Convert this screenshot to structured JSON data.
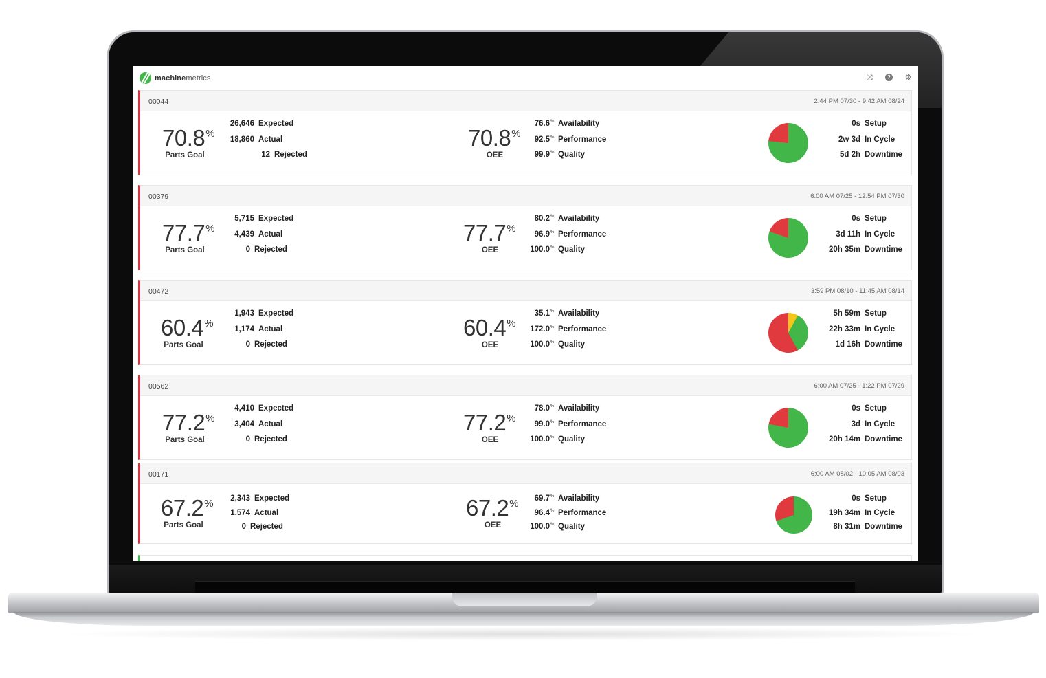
{
  "app": {
    "brand_bold": "machine",
    "brand_light": "metrics"
  },
  "colors": {
    "alert": "#d9313f",
    "ok": "#43b649",
    "setup": "#f5c518",
    "cycle": "#43b649",
    "down": "#e03a3e"
  },
  "icons": [
    "shuffle-icon",
    "help-icon",
    "gear-icon"
  ],
  "machines": [
    {
      "id": "00044",
      "range": "2:44 PM 07/30 - 9:42 AM 08/24",
      "goal_pct": "70.8",
      "goal_label": "Parts Goal",
      "expected": "26,646",
      "actual": "18,860",
      "rejected": "12",
      "oee_pct": "70.8",
      "oee_label": "OEE",
      "availability": "76.6",
      "performance": "92.5",
      "quality": "99.9",
      "setup": "0s",
      "in_cycle": "2w 3d",
      "downtime": "5d 2h",
      "pie": {
        "setup": 0,
        "in_cycle": 76.6,
        "downtime": 23.4
      }
    },
    {
      "id": "00379",
      "range": "6:00 AM 07/25 - 12:54 PM 07/30",
      "goal_pct": "77.7",
      "goal_label": "Parts Goal",
      "expected": "5,715",
      "actual": "4,439",
      "rejected": "0",
      "oee_pct": "77.7",
      "oee_label": "OEE",
      "availability": "80.2",
      "performance": "96.9",
      "quality": "100.0",
      "setup": "0s",
      "in_cycle": "3d 11h",
      "downtime": "20h 35m",
      "pie": {
        "setup": 0,
        "in_cycle": 80.2,
        "downtime": 19.8
      }
    },
    {
      "id": "00472",
      "range": "3:59 PM 08/10 - 11:45 AM 08/14",
      "goal_pct": "60.4",
      "goal_label": "Parts Goal",
      "expected": "1,943",
      "actual": "1,174",
      "rejected": "0",
      "oee_pct": "60.4",
      "oee_label": "OEE",
      "availability": "35.1",
      "performance": "172.0",
      "quality": "100.0",
      "setup": "5h 59m",
      "in_cycle": "22h 33m",
      "downtime": "1d 16h",
      "pie": {
        "setup": 8,
        "in_cycle": 34,
        "downtime": 58
      }
    },
    {
      "id": "00562",
      "range": "6:00 AM 07/25 - 1:22 PM 07/29",
      "goal_pct": "77.2",
      "goal_label": "Parts Goal",
      "expected": "4,410",
      "actual": "3,404",
      "rejected": "0",
      "oee_pct": "77.2",
      "oee_label": "OEE",
      "availability": "78.0",
      "performance": "99.0",
      "quality": "100.0",
      "setup": "0s",
      "in_cycle": "3d",
      "downtime": "20h 14m",
      "pie": {
        "setup": 0,
        "in_cycle": 78,
        "downtime": 22
      }
    },
    {
      "id": "00171",
      "range": "6:00 AM 08/02 - 10:05 AM 08/03",
      "goal_pct": "67.2",
      "goal_label": "Parts Goal",
      "expected": "2,343",
      "actual": "1,574",
      "rejected": "0",
      "oee_pct": "67.2",
      "oee_label": "OEE",
      "availability": "69.7",
      "performance": "96.4",
      "quality": "100.0",
      "setup": "0s",
      "in_cycle": "19h 34m",
      "downtime": "8h 31m",
      "pie": {
        "setup": 0,
        "in_cycle": 69.7,
        "downtime": 30.3
      }
    }
  ],
  "labels": {
    "expected": "Expected",
    "actual": "Actual",
    "rejected": "Rejected",
    "availability": "Availability",
    "performance": "Performance",
    "quality": "Quality",
    "setup": "Setup",
    "in_cycle": "In Cycle",
    "downtime": "Downtime",
    "pct_symbol": "%"
  }
}
